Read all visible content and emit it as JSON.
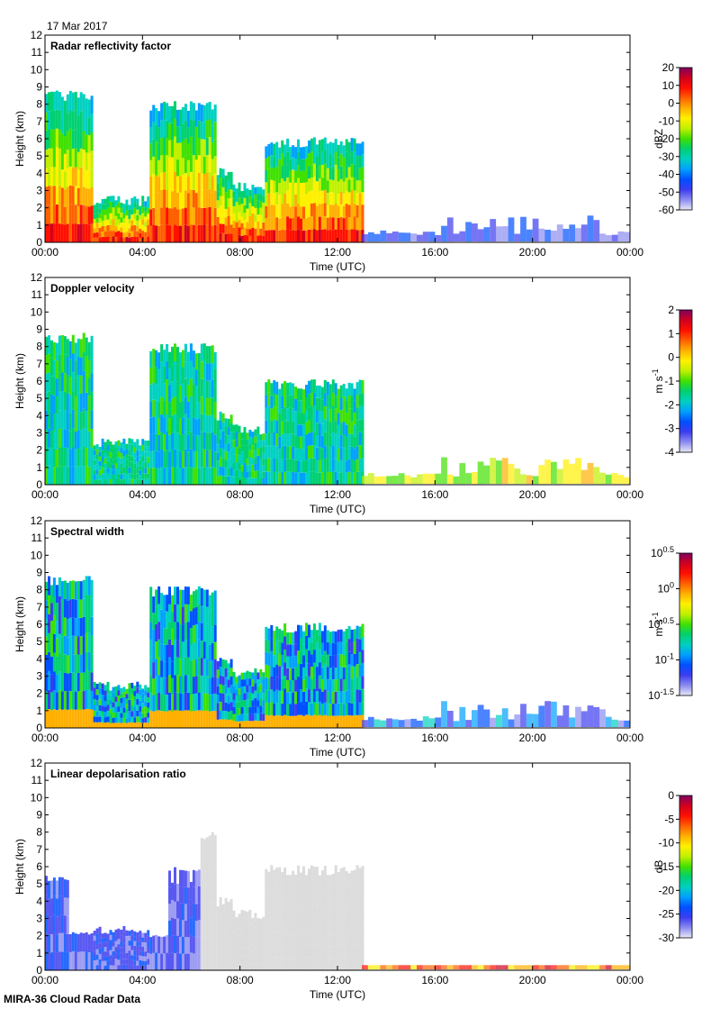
{
  "date_label": "17 Mar 2017",
  "footer": "MIRA-36 Cloud Radar Data",
  "colors": {
    "cmap": [
      "#e8e8f8",
      "#8c8cf0",
      "#3c3cf0",
      "#0050ff",
      "#00a0ff",
      "#00d0c0",
      "#00d070",
      "#40e000",
      "#c0f000",
      "#fff000",
      "#ffb000",
      "#ff6000",
      "#ff1000",
      "#d00020",
      "#800060"
    ],
    "depol_gray": "#d6d6d6"
  },
  "chart_data": [
    {
      "type": "heatmap",
      "title": "Radar reflectivity factor",
      "xlabel": "Time (UTC)",
      "ylabel": "Height (km)",
      "xticks": [
        "00:00",
        "04:00",
        "08:00",
        "12:00",
        "16:00",
        "20:00",
        "00:00"
      ],
      "yticks": [
        "0",
        "1",
        "2",
        "3",
        "4",
        "5",
        "6",
        "7",
        "8",
        "9",
        "10",
        "11",
        "12"
      ],
      "ylim": [
        0,
        12
      ],
      "colorbar": {
        "label": "dBZ",
        "unit_sup": "",
        "ticks": [
          "20",
          "10",
          "0",
          "-10",
          "-20",
          "-30",
          "-40",
          "-50",
          "-60"
        ],
        "range": [
          -60,
          20
        ]
      }
    },
    {
      "type": "heatmap",
      "title": "Doppler velocity",
      "xlabel": "Time (UTC)",
      "ylabel": "Height (km)",
      "xticks": [
        "00:00",
        "04:00",
        "08:00",
        "12:00",
        "16:00",
        "20:00",
        "00:00"
      ],
      "yticks": [
        "0",
        "1",
        "2",
        "3",
        "4",
        "5",
        "6",
        "7",
        "8",
        "9",
        "10",
        "11",
        "12"
      ],
      "ylim": [
        0,
        12
      ],
      "colorbar": {
        "label": "m s",
        "unit_sup": "-1",
        "ticks": [
          "2",
          "1",
          "0",
          "-1",
          "-2",
          "-3",
          "-4"
        ],
        "range": [
          -4,
          2
        ]
      }
    },
    {
      "type": "heatmap",
      "title": "Spectral width",
      "xlabel": "Time (UTC)",
      "ylabel": "Height (km)",
      "xticks": [
        "00:00",
        "04:00",
        "08:00",
        "12:00",
        "16:00",
        "20:00",
        "00:00"
      ],
      "yticks": [
        "0",
        "1",
        "2",
        "3",
        "4",
        "5",
        "6",
        "7",
        "8",
        "9",
        "10",
        "11",
        "12"
      ],
      "ylim": [
        0,
        12
      ],
      "colorbar": {
        "label": "m s",
        "unit_sup": "-1",
        "ticks_base": "10",
        "ticks": [
          "0.5",
          "0",
          "-0.5",
          "-1",
          "-1.5"
        ],
        "range": [
          -1.5,
          0.5
        ]
      }
    },
    {
      "type": "heatmap",
      "title": "Linear depolarisation ratio",
      "xlabel": "Time (UTC)",
      "ylabel": "Height (km)",
      "xticks": [
        "00:00",
        "04:00",
        "08:00",
        "12:00",
        "16:00",
        "20:00",
        "00:00"
      ],
      "yticks": [
        "0",
        "1",
        "2",
        "3",
        "4",
        "5",
        "6",
        "7",
        "8",
        "9",
        "10",
        "11",
        "12"
      ],
      "ylim": [
        0,
        12
      ],
      "colorbar": {
        "label": "dB",
        "unit_sup": "",
        "ticks": [
          "0",
          "-5",
          "-10",
          "-15",
          "-20",
          "-25",
          "-30"
        ],
        "range": [
          -30,
          0
        ]
      }
    }
  ]
}
